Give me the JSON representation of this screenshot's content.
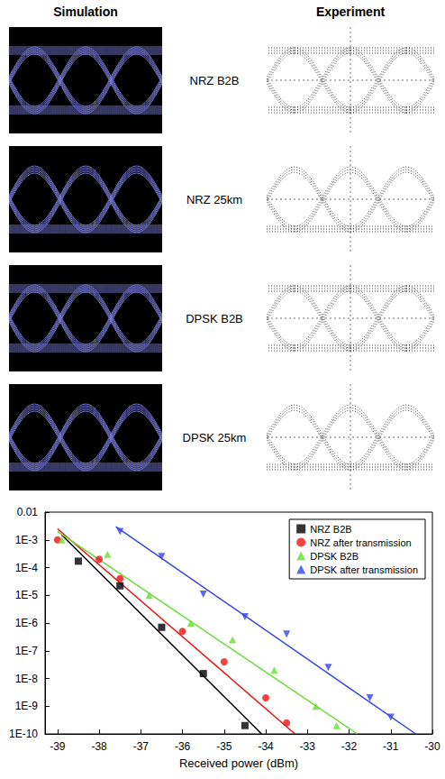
{
  "figure": {
    "headers": [
      "Simulation",
      "Experiment"
    ],
    "rows": [
      "NRZ B2B",
      "NRZ 25km",
      "DPSK B2B",
      "DPSK 25km"
    ]
  },
  "chart_data": {
    "type": "scatter",
    "x_label": "Received power (dBm)",
    "xlim": [
      -39.3,
      -30
    ],
    "xticks": [
      -39,
      -38,
      -37,
      -36,
      -35,
      -34,
      -33,
      -32,
      -31,
      -30
    ],
    "ylim": [
      1e-10,
      0.01
    ],
    "yticks": [
      {
        "value": 0.01,
        "label": "0.01"
      },
      {
        "value": 0.001,
        "label": "1E-3"
      },
      {
        "value": 0.0001,
        "label": "1E-4"
      },
      {
        "value": 1e-05,
        "label": "1E-5"
      },
      {
        "value": 1e-06,
        "label": "1E-6"
      },
      {
        "value": 1e-07,
        "label": "1E-7"
      },
      {
        "value": 1e-08,
        "label": "1E-8"
      },
      {
        "value": 1e-09,
        "label": "1E-9"
      },
      {
        "value": 1e-10,
        "label": "1E-10"
      }
    ],
    "log": "y",
    "grid": false,
    "legend": "top-right",
    "series": [
      {
        "name": "NRZ B2B",
        "color": "#000000",
        "marker": "square",
        "x": [
          -38.5,
          -37.5,
          -36.5,
          -35.5,
          -34.5
        ],
        "values": [
          0.00017,
          2.2e-05,
          7e-07,
          1.5e-08,
          2e-10
        ],
        "fit_x": [
          -38.9,
          -34.1
        ],
        "fit_values": [
          0.0015,
          1e-10
        ]
      },
      {
        "name": "NRZ after transmission",
        "color": "#ee1111",
        "marker": "circle",
        "x": [
          -39,
          -38,
          -37.5,
          -36,
          -35,
          -34,
          -33.5
        ],
        "values": [
          0.001,
          0.0002,
          4e-05,
          5e-07,
          4e-08,
          2e-09,
          2.5e-10
        ],
        "fit_x": [
          -39,
          -33.3
        ],
        "fit_values": [
          0.0025,
          1e-10
        ]
      },
      {
        "name": "DPSK B2B",
        "color": "#66dd33",
        "marker": "triangle",
        "x": [
          -38.9,
          -37.8,
          -36.8,
          -35.8,
          -34.8,
          -33.8,
          -32.8,
          -32.3
        ],
        "values": [
          0.001,
          0.0003,
          1e-05,
          1e-06,
          2.5e-07,
          2e-08,
          1e-09,
          2e-10
        ],
        "fit_x": [
          -39,
          -31.8
        ],
        "fit_values": [
          0.002,
          1e-10
        ]
      },
      {
        "name": "DPSK after transmission",
        "color": "#3344ee",
        "marker": "triangle_down",
        "x": [
          -37.5,
          -36.5,
          -35.5,
          -34.5,
          -33.5,
          -32.5,
          -31.5,
          -31
        ],
        "values": [
          0.002,
          0.00025,
          1.1e-05,
          1.7e-06,
          4e-07,
          2.5e-08,
          2e-09,
          4e-10
        ],
        "fit_x": [
          -37.6,
          -30.4
        ],
        "fit_values": [
          0.003,
          1e-10
        ]
      }
    ]
  }
}
